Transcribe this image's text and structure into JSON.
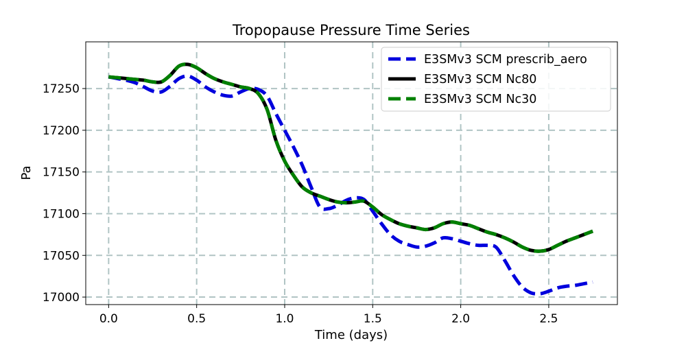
{
  "chart_data": {
    "type": "line",
    "title": "Tropopause Pressure Time Series",
    "xlabel": "Time (days)",
    "ylabel": "Pa",
    "xlim": [
      -0.13,
      2.89
    ],
    "ylim": [
      16991,
      17306
    ],
    "xticks": [
      0.0,
      0.5,
      1.0,
      1.5,
      2.0,
      2.5
    ],
    "xtick_labels": [
      "0.0",
      "0.5",
      "1.0",
      "1.5",
      "2.0",
      "2.5"
    ],
    "yticks": [
      17000,
      17050,
      17100,
      17150,
      17200,
      17250
    ],
    "ytick_labels": [
      "17000",
      "17050",
      "17100",
      "17150",
      "17200",
      "17250"
    ],
    "grid": true,
    "grid_color": "#b0c4c4",
    "legend_position": "top-right",
    "series": [
      {
        "name": "E3SMv3 SCM prescrib_aero",
        "color": "#0000dd",
        "style": "dashed",
        "x": [
          0,
          0.05,
          0.1,
          0.15,
          0.2,
          0.25,
          0.3,
          0.35,
          0.4,
          0.45,
          0.5,
          0.55,
          0.6,
          0.65,
          0.7,
          0.75,
          0.8,
          0.85,
          0.9,
          0.95,
          1.0,
          1.05,
          1.1,
          1.15,
          1.2,
          1.25,
          1.3,
          1.35,
          1.4,
          1.45,
          1.5,
          1.55,
          1.6,
          1.65,
          1.7,
          1.75,
          1.8,
          1.85,
          1.9,
          1.95,
          2.0,
          2.05,
          2.1,
          2.15,
          2.2,
          2.25,
          2.3,
          2.35,
          2.4,
          2.45,
          2.5,
          2.55,
          2.6,
          2.65,
          2.7,
          2.75
        ],
        "y": [
          17264,
          17262,
          17260,
          17257,
          17252,
          17247,
          17246,
          17253,
          17262,
          17265,
          17260,
          17252,
          17246,
          17242,
          17241,
          17246,
          17250,
          17249,
          17241,
          17220,
          17200,
          17180,
          17158,
          17132,
          17108,
          17106,
          17110,
          17116,
          17119,
          17117,
          17103,
          17088,
          17075,
          17067,
          17063,
          17060,
          17061,
          17065,
          17071,
          17070,
          17067,
          17064,
          17062,
          17062,
          17060,
          17044,
          17026,
          17012,
          17005,
          17004,
          17007,
          17011,
          17013,
          17014,
          17016,
          17018
        ]
      },
      {
        "name": "E3SMv3 SCM Nc80",
        "color": "#000000",
        "style": "solid",
        "x": [
          0,
          0.05,
          0.1,
          0.15,
          0.2,
          0.25,
          0.3,
          0.35,
          0.4,
          0.45,
          0.5,
          0.55,
          0.6,
          0.65,
          0.7,
          0.75,
          0.8,
          0.85,
          0.9,
          0.95,
          1.0,
          1.05,
          1.1,
          1.15,
          1.2,
          1.25,
          1.3,
          1.35,
          1.4,
          1.45,
          1.5,
          1.55,
          1.6,
          1.65,
          1.7,
          1.75,
          1.8,
          1.85,
          1.9,
          1.95,
          2.0,
          2.05,
          2.1,
          2.15,
          2.2,
          2.25,
          2.3,
          2.35,
          2.4,
          2.45,
          2.5,
          2.55,
          2.6,
          2.65,
          2.7,
          2.75
        ],
        "y": [
          17264,
          17263,
          17262,
          17261,
          17260,
          17258,
          17258,
          17266,
          17277,
          17279,
          17275,
          17268,
          17262,
          17258,
          17255,
          17252,
          17250,
          17244,
          17225,
          17188,
          17163,
          17146,
          17132,
          17125,
          17121,
          17117,
          17114,
          17113,
          17114,
          17115,
          17108,
          17099,
          17093,
          17088,
          17085,
          17083,
          17081,
          17083,
          17088,
          17090,
          17088,
          17086,
          17082,
          17078,
          17075,
          17071,
          17066,
          17060,
          17056,
          17055,
          17057,
          17062,
          17067,
          17071,
          17075,
          17079
        ]
      },
      {
        "name": "E3SMv3 SCM Nc30",
        "color": "#008000",
        "style": "dashed",
        "x": [
          0,
          0.05,
          0.1,
          0.15,
          0.2,
          0.25,
          0.3,
          0.35,
          0.4,
          0.45,
          0.5,
          0.55,
          0.6,
          0.65,
          0.7,
          0.75,
          0.8,
          0.85,
          0.9,
          0.95,
          1.0,
          1.05,
          1.1,
          1.15,
          1.2,
          1.25,
          1.3,
          1.35,
          1.4,
          1.45,
          1.5,
          1.55,
          1.6,
          1.65,
          1.7,
          1.75,
          1.8,
          1.85,
          1.9,
          1.95,
          2.0,
          2.05,
          2.1,
          2.15,
          2.2,
          2.25,
          2.3,
          2.35,
          2.4,
          2.45,
          2.5,
          2.55,
          2.6,
          2.65,
          2.7,
          2.75
        ],
        "y": [
          17264,
          17263,
          17262,
          17261,
          17260,
          17258,
          17258,
          17266,
          17277,
          17279,
          17275,
          17268,
          17262,
          17258,
          17255,
          17252,
          17250,
          17244,
          17225,
          17188,
          17163,
          17146,
          17132,
          17125,
          17121,
          17117,
          17114,
          17113,
          17114,
          17115,
          17108,
          17099,
          17093,
          17088,
          17085,
          17083,
          17081,
          17083,
          17088,
          17090,
          17088,
          17086,
          17082,
          17078,
          17075,
          17071,
          17066,
          17060,
          17056,
          17055,
          17057,
          17062,
          17067,
          17071,
          17075,
          17079
        ]
      }
    ]
  }
}
